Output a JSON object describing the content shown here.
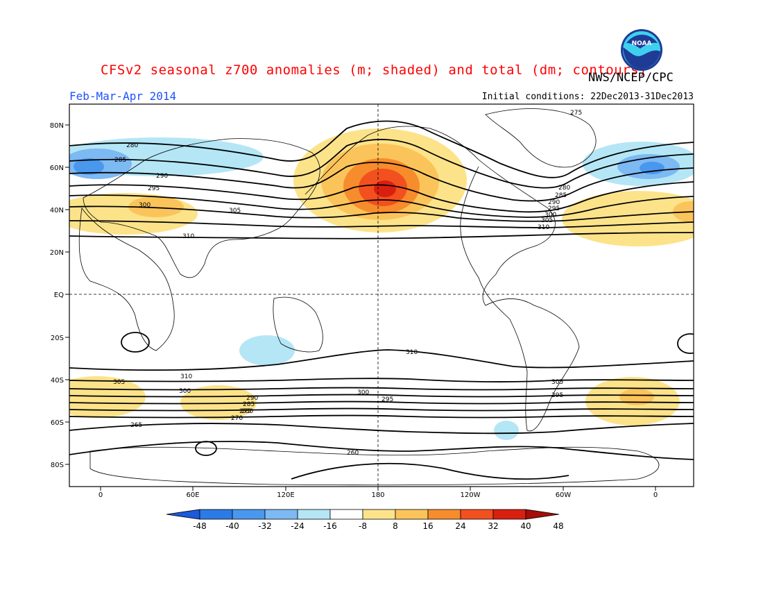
{
  "header": {
    "title": "CFSv2 seasonal z700 anomalies (m; shaded) and total (dm; contours)",
    "agency": "NWS/NCEP/CPC",
    "season": "Feb-Mar-Apr 2014",
    "initial_conditions": "Initial conditions: 22Dec2013-31Dec2013",
    "logo_text": "NOAA"
  },
  "map": {
    "lat_labels": [
      "80N",
      "60N",
      "40N",
      "20N",
      "EQ",
      "20S",
      "40S",
      "60S",
      "80S"
    ],
    "lon_labels": [
      "0",
      "60E",
      "120E",
      "180",
      "120W",
      "60W",
      "0"
    ],
    "contour_labels": {
      "north": [
        "280",
        "285",
        "290",
        "295",
        "300",
        "305",
        "310",
        "275",
        "280",
        "285",
        "290",
        "295",
        "300",
        "305",
        "310"
      ],
      "south": [
        "310",
        "305",
        "300",
        "295",
        "290",
        "285",
        "280",
        "275",
        "270",
        "265",
        "260",
        "310",
        "300",
        "295",
        "305"
      ]
    }
  },
  "legend": {
    "labels": [
      "-48",
      "-40",
      "-32",
      "-24",
      "-16",
      "-8",
      "8",
      "16",
      "24",
      "32",
      "40",
      "48"
    ],
    "colors": [
      "#1a5adb",
      "#2b7be6",
      "#4a97ee",
      "#7db9f3",
      "#b4e6f6",
      "#ffffff",
      "#fce38a",
      "#fbc45a",
      "#f78c2c",
      "#f2501e",
      "#d92010",
      "#a50e08"
    ]
  }
}
